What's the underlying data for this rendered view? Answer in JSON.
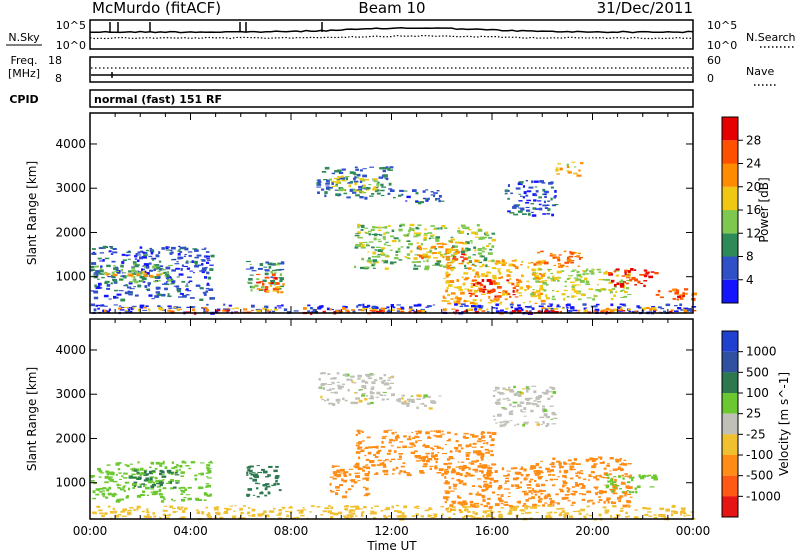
{
  "header": {
    "radar": "McMurdo (fitACF)",
    "beam": "Beam 10",
    "date": "31/Dec/2011"
  },
  "noise_panel": {
    "left_label": "N.Sky",
    "left_ticks": [
      "10^5",
      "10^0"
    ],
    "right_label": "N.Search",
    "right_ticks": [
      "10^5",
      "10^0"
    ]
  },
  "freq_panel": {
    "left_label_1": "Freq.",
    "left_label_2": "[MHz]",
    "left_ticks": [
      "18",
      "8"
    ],
    "right_label": "Nave",
    "right_ticks": [
      "60",
      "0"
    ]
  },
  "cpid_panel": {
    "label": "CPID",
    "text": "normal (fast) 151 RF"
  },
  "colors": {
    "power": [
      "#1414ff",
      "#3050c8",
      "#2e8b57",
      "#7ec850",
      "#f0c814",
      "#ff8c00",
      "#ff5000",
      "#e60000"
    ],
    "velocity": [
      "#2040d0",
      "#3050a0",
      "#2e7850",
      "#6cc830",
      "#c0c0b8",
      "#f0c030",
      "#ff8c14",
      "#ff5a14",
      "#e61414"
    ]
  },
  "chart_data": [
    {
      "type": "heatmap",
      "title": "",
      "xlabel": "",
      "ylabel": "Slant Range [km]",
      "x_ticks": [
        "00:00",
        "04:00",
        "08:00",
        "12:00",
        "16:00",
        "20:00",
        "00:00"
      ],
      "y_ticks": [
        "1000",
        "2000",
        "3000",
        "4000"
      ],
      "ylim": [
        180,
        4700
      ],
      "colorbar": {
        "label": "Power [dB]",
        "ticks": [
          "4",
          "8",
          "12",
          "16",
          "20",
          "24",
          "28"
        ],
        "range": [
          0,
          32
        ]
      },
      "regions": [
        {
          "t0": 0.0,
          "t1": 4.8,
          "r0": 500,
          "r1": 1700,
          "value": 6
        },
        {
          "t0": 0.0,
          "t1": 3.5,
          "r0": 900,
          "r1": 1300,
          "value": 12
        },
        {
          "t0": 0.5,
          "t1": 3.0,
          "r0": 1000,
          "r1": 1150,
          "value": 18
        },
        {
          "t0": 6.2,
          "t1": 7.6,
          "r0": 700,
          "r1": 1400,
          "value": 10
        },
        {
          "t0": 6.5,
          "t1": 7.4,
          "r0": 700,
          "r1": 1100,
          "value": 26
        },
        {
          "t0": 7.0,
          "t1": 7.7,
          "r0": 650,
          "r1": 900,
          "value": 20
        },
        {
          "t0": 9.0,
          "t1": 12.0,
          "r0": 2800,
          "r1": 3500,
          "value": 8
        },
        {
          "t0": 9.5,
          "t1": 11.5,
          "r0": 2900,
          "r1": 3300,
          "value": 16
        },
        {
          "t0": 12.0,
          "t1": 14.0,
          "r0": 2700,
          "r1": 3000,
          "value": 7
        },
        {
          "t0": 10.5,
          "t1": 16.0,
          "r0": 1200,
          "r1": 2200,
          "value": 14
        },
        {
          "t0": 13.0,
          "t1": 15.0,
          "r0": 1400,
          "r1": 1800,
          "value": 22
        },
        {
          "t0": 14.2,
          "t1": 14.8,
          "r0": 1350,
          "r1": 1550,
          "value": 28
        },
        {
          "t0": 14.0,
          "t1": 18.0,
          "r0": 400,
          "r1": 1400,
          "value": 20
        },
        {
          "t0": 15.0,
          "t1": 17.0,
          "r0": 550,
          "r1": 1000,
          "value": 28
        },
        {
          "t0": 17.5,
          "t1": 19.5,
          "r0": 1200,
          "r1": 1600,
          "value": 24
        },
        {
          "t0": 17.5,
          "t1": 21.5,
          "r0": 500,
          "r1": 1200,
          "value": 16
        },
        {
          "t0": 20.5,
          "t1": 22.5,
          "r0": 800,
          "r1": 1200,
          "value": 28
        },
        {
          "t0": 22.5,
          "t1": 24.0,
          "r0": 500,
          "r1": 800,
          "value": 26
        },
        {
          "t0": 16.5,
          "t1": 18.5,
          "r0": 2400,
          "r1": 3200,
          "value": 6
        },
        {
          "t0": 18.5,
          "t1": 19.5,
          "r0": 3300,
          "r1": 3600,
          "value": 18
        },
        {
          "t0": 0.0,
          "t1": 24.0,
          "r0": 200,
          "r1": 400,
          "value": 4
        },
        {
          "t0": 0.0,
          "t1": 24.0,
          "r0": 250,
          "r1": 320,
          "value": 20
        },
        {
          "t0": 3.0,
          "t1": 24.0,
          "r0": 200,
          "r1": 260,
          "value": 28
        }
      ]
    },
    {
      "type": "heatmap",
      "title": "",
      "xlabel": "Time UT",
      "ylabel": "Slant Range [km]",
      "x_ticks": [
        "00:00",
        "04:00",
        "08:00",
        "12:00",
        "16:00",
        "20:00",
        "00:00"
      ],
      "y_ticks": [
        "1000",
        "2000",
        "3000",
        "4000"
      ],
      "ylim": [
        180,
        4700
      ],
      "colorbar": {
        "label": "Velocity [m s^-1]",
        "ticks": [
          "1000",
          "500",
          "100",
          "25",
          "-25",
          "-100",
          "-500",
          "-1000"
        ]
      },
      "regions": [
        {
          "t0": 0.0,
          "t1": 4.8,
          "r0": 600,
          "r1": 1500,
          "value": 60
        },
        {
          "t0": 1.5,
          "t1": 3.5,
          "r0": 900,
          "r1": 1300,
          "value": 200
        },
        {
          "t0": 6.2,
          "t1": 7.6,
          "r0": 700,
          "r1": 1400,
          "value": 200
        },
        {
          "t0": 9.0,
          "t1": 12.0,
          "r0": 2800,
          "r1": 3500,
          "value": 0
        },
        {
          "t0": 12.0,
          "t1": 14.0,
          "r0": 2700,
          "r1": 3000,
          "value": 0
        },
        {
          "t0": 10.5,
          "t1": 16.0,
          "r0": 1200,
          "r1": 2200,
          "value": -200
        },
        {
          "t0": 9.5,
          "t1": 11.0,
          "r0": 700,
          "r1": 1400,
          "value": -200
        },
        {
          "t0": 14.0,
          "t1": 18.0,
          "r0": 400,
          "r1": 1400,
          "value": -300
        },
        {
          "t0": 17.5,
          "t1": 21.5,
          "r0": 500,
          "r1": 1600,
          "value": -300
        },
        {
          "t0": 20.5,
          "t1": 22.5,
          "r0": 800,
          "r1": 1200,
          "value": 60
        },
        {
          "t0": 16.0,
          "t1": 18.5,
          "r0": 2300,
          "r1": 3200,
          "value": 0
        },
        {
          "t0": 0.0,
          "t1": 24.0,
          "r0": 200,
          "r1": 500,
          "value": -60
        }
      ]
    }
  ]
}
